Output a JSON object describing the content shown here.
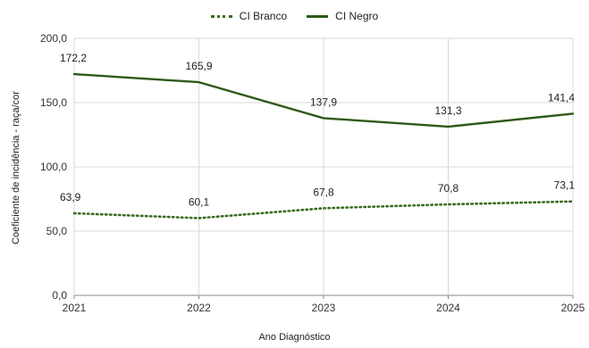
{
  "chart_data": {
    "type": "line",
    "categories": [
      "2021",
      "2022",
      "2023",
      "2024",
      "2025"
    ],
    "series": [
      {
        "name": "CI Branco",
        "values": [
          63.9,
          60.1,
          67.8,
          70.8,
          73.1
        ],
        "labels": [
          "63,9",
          "60,1",
          "67,8",
          "70,8",
          "73,1"
        ],
        "color": "#3a6b1e",
        "style": "dotted"
      },
      {
        "name": "CI Negro",
        "values": [
          172.2,
          165.9,
          137.9,
          131.3,
          141.4
        ],
        "labels": [
          "172,2",
          "165,9",
          "137,9",
          "131,3",
          "141,4"
        ],
        "color": "#2e5a18",
        "style": "solid"
      }
    ],
    "ylim": [
      0,
      200
    ],
    "yticks": [
      0,
      50,
      100,
      150,
      200
    ],
    "ytick_labels": [
      "0,0",
      "50,0",
      "100,0",
      "150,0",
      "200,0"
    ],
    "xlabel": "Ano Diagnóstico",
    "ylabel": "Coeficiente de incidência - raça/cor",
    "grid": "horizontal",
    "legend": "top-center"
  }
}
